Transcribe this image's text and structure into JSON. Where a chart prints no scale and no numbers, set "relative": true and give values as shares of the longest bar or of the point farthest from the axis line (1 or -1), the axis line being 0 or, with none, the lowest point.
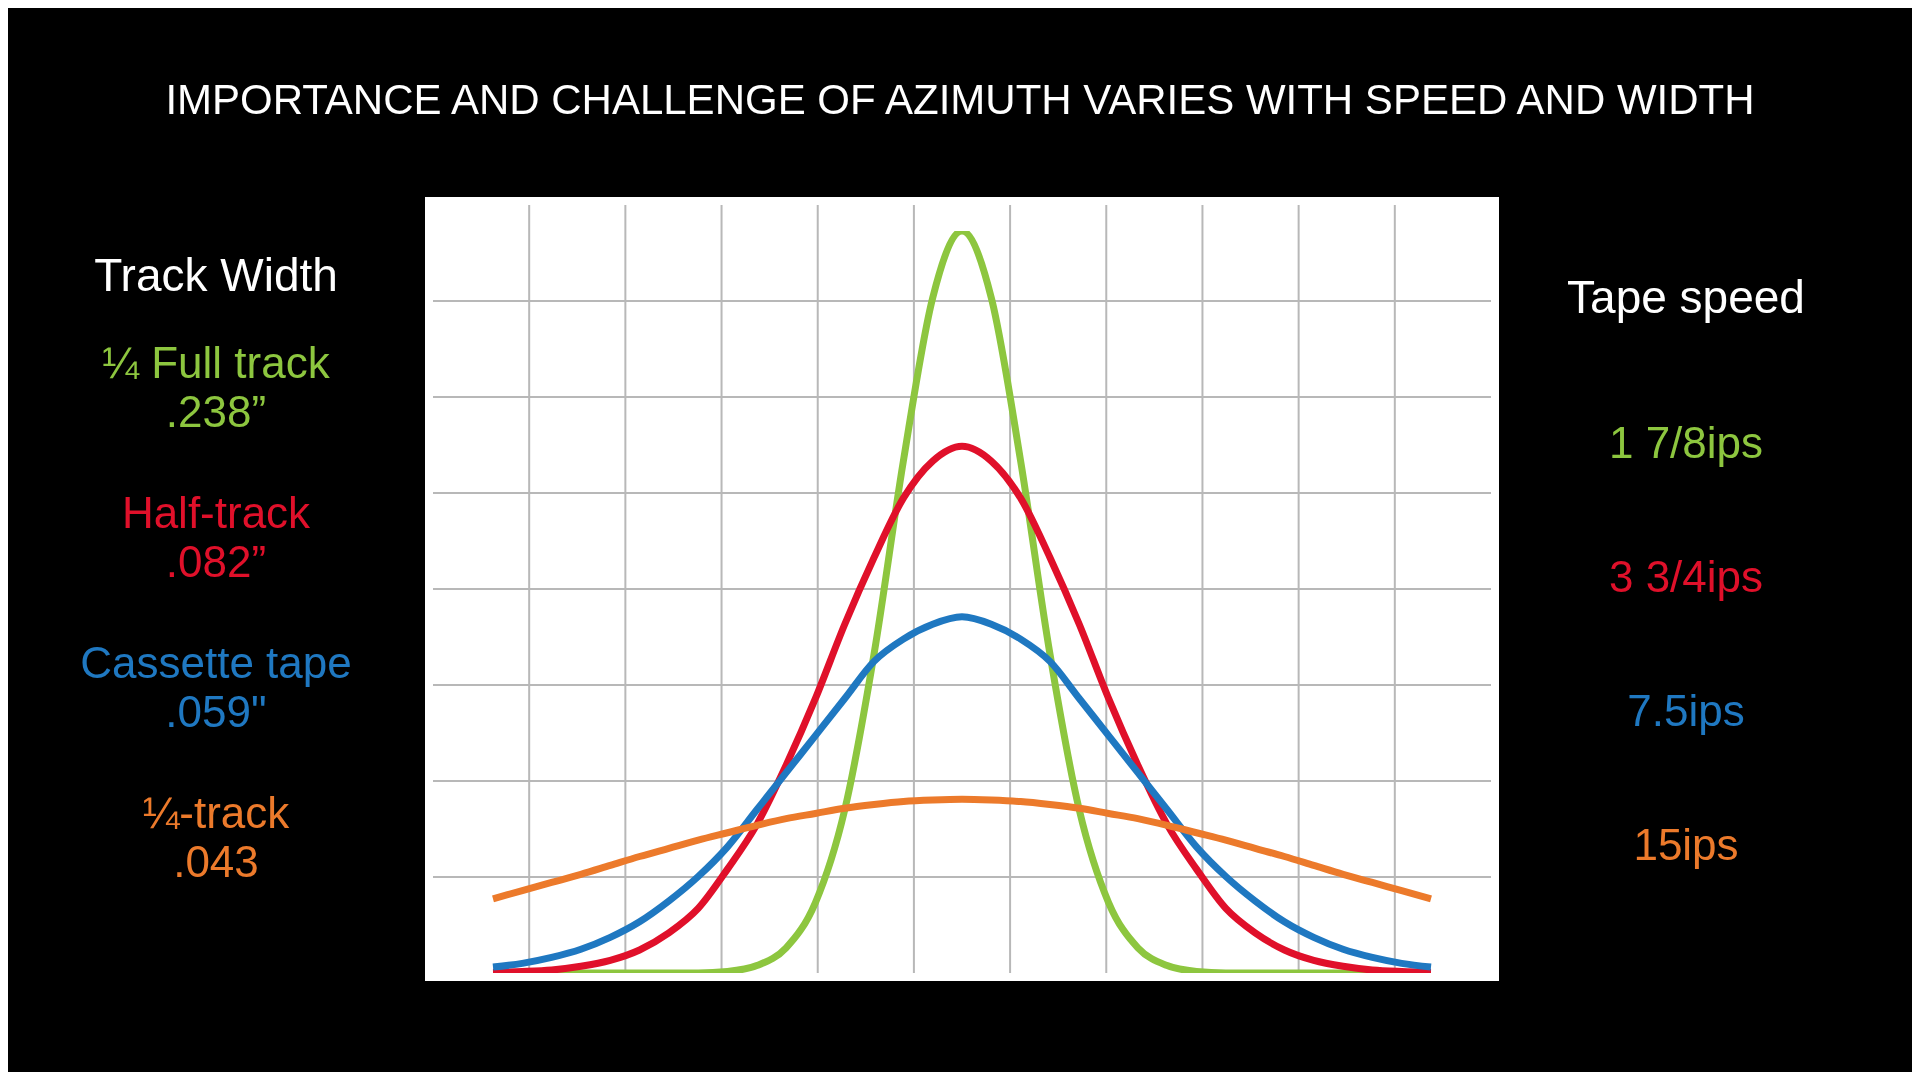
{
  "chart_data": {
    "type": "line",
    "title": "IMPORTANCE AND CHALLENGE OF AZIMUTH VARIES WITH SPEED AND WIDTH",
    "legend_title": "Track Width",
    "relative": true,
    "grid": true,
    "legend": "left",
    "marker": "none",
    "line_style": "solid",
    "categories": [
      null,
      null,
      null,
      null,
      null,
      null,
      null,
      null,
      null,
      null,
      null,
      null,
      null,
      null,
      null,
      null,
      null,
      null,
      null,
      null,
      null,
      null,
      null,
      null,
      null,
      null,
      null,
      null,
      null,
      null,
      null,
      null,
      null
    ],
    "series": [
      {
        "name": "¼ Full track\n.238”",
        "color": "#8dc63f",
        "values": [
          0,
          0,
          0,
          0,
          0,
          0,
          0,
          0,
          0.002,
          0.01,
          0.034,
          0.095,
          0.22,
          0.43,
          0.69,
          0.91,
          1,
          0.91,
          0.69,
          0.43,
          0.22,
          0.095,
          0.034,
          0.01,
          0.002,
          0,
          0,
          0,
          0,
          0,
          0,
          0,
          0
        ]
      },
      {
        "name": "Half-track\n.082”",
        "color": "#e0102a",
        "values": [
          0.001,
          0.002,
          0.004,
          0.009,
          0.017,
          0.031,
          0.054,
          0.087,
          0.14,
          0.2,
          0.28,
          0.37,
          0.47,
          0.56,
          0.64,
          0.69,
          0.71,
          0.69,
          0.64,
          0.56,
          0.47,
          0.37,
          0.28,
          0.2,
          0.14,
          0.087,
          0.054,
          0.031,
          0.017,
          0.009,
          0.004,
          0.002,
          0.001
        ]
      },
      {
        "name": "Cassette tape\n.059\"",
        "color": "#1f78c1",
        "values": [
          0.008,
          0.013,
          0.021,
          0.032,
          0.048,
          0.069,
          0.097,
          0.13,
          0.17,
          0.22,
          0.27,
          0.32,
          0.37,
          0.42,
          0.45,
          0.47,
          0.48,
          0.47,
          0.45,
          0.42,
          0.37,
          0.32,
          0.27,
          0.22,
          0.17,
          0.13,
          0.097,
          0.069,
          0.048,
          0.032,
          0.021,
          0.013,
          0.008
        ]
      },
      {
        "name": "¼-track\n.043",
        "color": "#ec7a2b",
        "values": [
          0.1,
          0.111,
          0.122,
          0.133,
          0.145,
          0.157,
          0.168,
          0.179,
          0.189,
          0.199,
          0.208,
          0.215,
          0.222,
          0.227,
          0.231,
          0.233,
          0.234,
          0.233,
          0.231,
          0.227,
          0.222,
          0.215,
          0.208,
          0.199,
          0.189,
          0.179,
          0.168,
          0.157,
          0.145,
          0.133,
          0.122,
          0.111,
          0.1
        ]
      }
    ],
    "annotations": [
      "Tape speed",
      "1 7/8ips",
      "3 3/4ips",
      "7.5ips",
      "15ips"
    ]
  }
}
